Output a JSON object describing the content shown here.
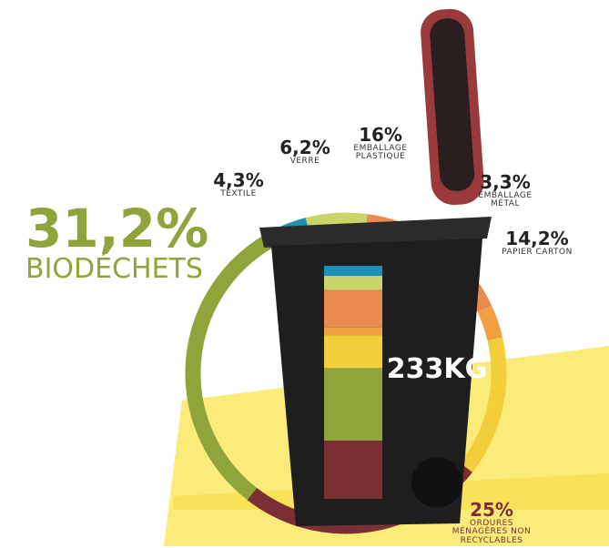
{
  "chart_data": {
    "type": "donut",
    "categories": [
      "TEXTILE",
      "VERRE",
      "EMBALLAGE PLASTIQUE",
      "EMBALLAGE MÉTAL",
      "PAPIER CARTON",
      "ORDURES MÉNAGÈRES NON RECYCLABLES",
      "BIODÉCHETS"
    ],
    "values": [
      4.3,
      6.2,
      16,
      3.3,
      14.2,
      25,
      31.2
    ],
    "value_labels": [
      "4,3%",
      "6,2%",
      "16%",
      "3,3%",
      "14,2%",
      "25%",
      "31,2%"
    ],
    "colors": [
      "#1e8fb8",
      "#c9d46a",
      "#e98a4e",
      "#f0a040",
      "#f2cf3a",
      "#7a2f35",
      "#8fa53c"
    ],
    "center_label": "233KG"
  }
}
